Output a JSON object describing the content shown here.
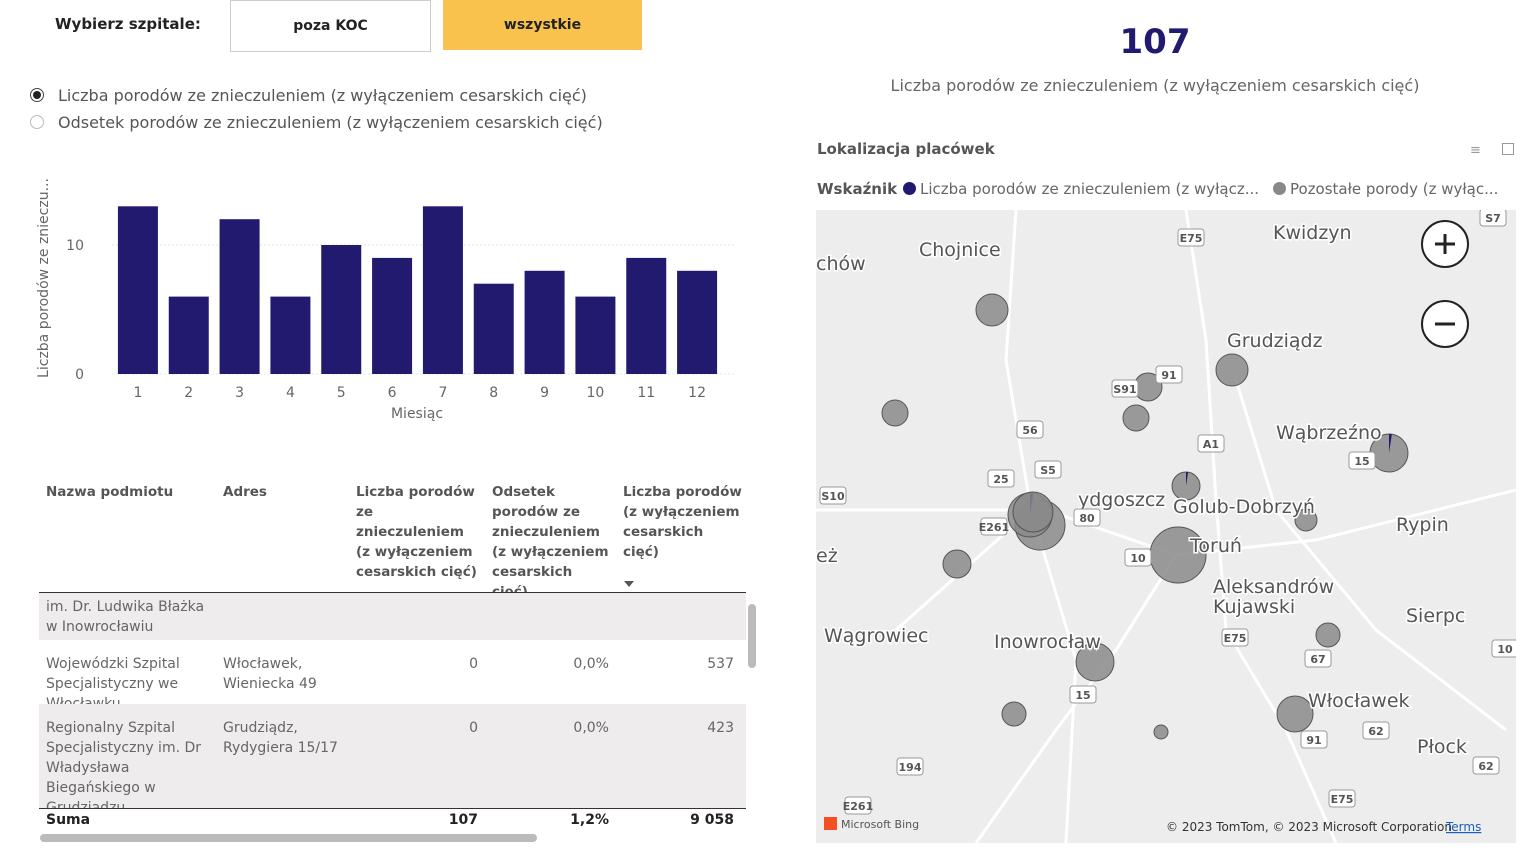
{
  "filter": {
    "label": "Wybierz szpitale:",
    "options": [
      "poza KOC",
      "wszystkie"
    ]
  },
  "radio": [
    "Liczba porodów ze znieczuleniem (z wyłączeniem cesarskich cięć)",
    "Odsetek porodów ze znieczuleniem (z wyłączeniem cesarskich cięć)"
  ],
  "kpi": {
    "value": "107",
    "label": "Liczba porodów ze znieczuleniem (z wyłączeniem cesarskich cięć)"
  },
  "chart_data": {
    "type": "bar",
    "ylabel": "Liczba porodów ze znieczu...",
    "xlabel": "Miesiąc",
    "categories": [
      "1",
      "2",
      "3",
      "4",
      "5",
      "6",
      "7",
      "8",
      "9",
      "10",
      "11",
      "12"
    ],
    "values": [
      13,
      6,
      12,
      6,
      10,
      9,
      13,
      7,
      8,
      6,
      9,
      8
    ],
    "color": "#221a6e",
    "ylim": [
      0,
      14
    ],
    "yticks": [
      0,
      10
    ],
    "grid": true
  },
  "table": {
    "columns": [
      "Nazwa podmiotu",
      "Adres",
      "Liczba porodów ze znieczuleniem (z wyłączeniem cesarskich cięć)",
      "Odsetek porodów ze znieczuleniem (z wyłączeniem cesarskich cięć)",
      "Liczba porodów (z wyłączeniem cesarskich cięć)"
    ],
    "rows": [
      [
        "im. Dr. Ludwika Błażka w Inowrocławiu",
        "",
        "",
        "",
        ""
      ],
      [
        "Wojewódzki Szpital Specjalistyczny we Włocławku",
        "Włocławek, Wieniecka 49",
        "0",
        "0,0%",
        "537"
      ],
      [
        "Regionalny Szpital Specjalistyczny im. Dr Władysława Biegańskiego w Grudziądzu",
        "Grudziądz, Rydygiera 15/17",
        "0",
        "0,0%",
        "423"
      ]
    ],
    "totals": [
      "Suma",
      "",
      "107",
      "1,2%",
      "9 058"
    ]
  },
  "map": {
    "title": "Lokalizacja placówek",
    "legend_title": "Wskaźnik",
    "legend": [
      "Liczba porodów ze znieczuleniem (z wyłącz...",
      "Pozostałe porody (z wyłąc..."
    ],
    "places": [
      "Chojnice",
      "chów",
      "Kwidzyn",
      "Grudziądz",
      "Wąbrzeźno",
      "ydgoszcz",
      "Golub-Dobrzyń",
      "Rypin",
      "Toruń",
      "eż",
      "Aleksandrów",
      "Kujawski",
      "Wągrowiec",
      "Inowrocław",
      "Sierpc",
      "Włocławek",
      "Płock"
    ],
    "roads": [
      "E75",
      "S7",
      "91",
      "S91",
      "56",
      "A1",
      "15",
      "S5",
      "25",
      "S10",
      "80",
      "E261",
      "10",
      "E75",
      "67",
      "10",
      "15",
      "62",
      "91",
      "194",
      "62",
      "E261",
      "E75"
    ],
    "attribution": "Microsoft Bing",
    "copyright": "© 2023 TomTom, © 2023 Microsoft Corporation",
    "terms": "Terms"
  }
}
